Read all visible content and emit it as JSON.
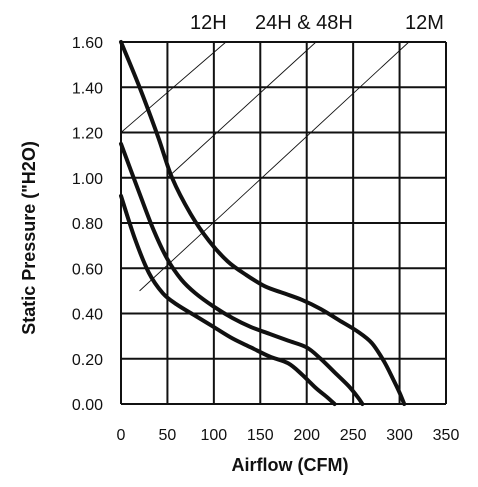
{
  "chart_data": {
    "type": "line",
    "title": "",
    "xlabel": "Airflow (CFM)",
    "ylabel": "Static Pressure (\"H2O)",
    "xlim": [
      0,
      350
    ],
    "ylim": [
      0,
      1.6
    ],
    "x_ticks": [
      "0",
      "50",
      "100",
      "150",
      "200",
      "250",
      "300",
      "350"
    ],
    "y_ticks": [
      "0.00",
      "0.20",
      "0.40",
      "0.60",
      "0.80",
      "1.00",
      "1.20",
      "1.40",
      "1.60"
    ],
    "x_tick_values": [
      0,
      50,
      100,
      150,
      200,
      250,
      300,
      350
    ],
    "y_tick_values": [
      0,
      0.2,
      0.4,
      0.6,
      0.8,
      1.0,
      1.2,
      1.4,
      1.6
    ],
    "grid": true,
    "colors": {
      "ink": "#111111",
      "background": "#ffffff"
    },
    "annotations": [
      "12H",
      "24H & 48H",
      "12M"
    ],
    "series": [
      {
        "values": [
          [
            0,
            1.6
          ],
          [
            20,
            1.4
          ],
          [
            40,
            1.18
          ],
          [
            55,
            1.0
          ],
          [
            75,
            0.84
          ],
          [
            95,
            0.72
          ],
          [
            115,
            0.63
          ],
          [
            135,
            0.57
          ],
          [
            155,
            0.52
          ],
          [
            175,
            0.49
          ],
          [
            195,
            0.46
          ],
          [
            215,
            0.42
          ],
          [
            235,
            0.37
          ],
          [
            255,
            0.32
          ],
          [
            270,
            0.27
          ],
          [
            283,
            0.19
          ],
          [
            293,
            0.11
          ],
          [
            300,
            0.05
          ],
          [
            305,
            0.0
          ]
        ]
      },
      {
        "values": [
          [
            0,
            1.15
          ],
          [
            20,
            0.93
          ],
          [
            35,
            0.77
          ],
          [
            50,
            0.64
          ],
          [
            65,
            0.55
          ],
          [
            80,
            0.49
          ],
          [
            100,
            0.43
          ],
          [
            120,
            0.38
          ],
          [
            140,
            0.34
          ],
          [
            160,
            0.31
          ],
          [
            180,
            0.28
          ],
          [
            200,
            0.25
          ],
          [
            215,
            0.2
          ],
          [
            230,
            0.14
          ],
          [
            245,
            0.08
          ],
          [
            255,
            0.03
          ],
          [
            260,
            0.0
          ]
        ]
      },
      {
        "values": [
          [
            0,
            0.92
          ],
          [
            15,
            0.73
          ],
          [
            30,
            0.58
          ],
          [
            45,
            0.49
          ],
          [
            60,
            0.44
          ],
          [
            80,
            0.39
          ],
          [
            100,
            0.34
          ],
          [
            120,
            0.29
          ],
          [
            140,
            0.25
          ],
          [
            160,
            0.21
          ],
          [
            180,
            0.18
          ],
          [
            195,
            0.13
          ],
          [
            210,
            0.07
          ],
          [
            222,
            0.03
          ],
          [
            230,
            0.0
          ]
        ]
      }
    ],
    "system_lines": [
      {
        "label": "12H",
        "x": [
          0,
          113
        ],
        "y": [
          1.2,
          1.6
        ]
      },
      {
        "label": "24H & 48H",
        "x": [
          50,
          210
        ],
        "y": [
          1.0,
          1.6
        ]
      },
      {
        "label": "12M",
        "x": [
          20,
          310
        ],
        "y": [
          0.5,
          1.6
        ]
      }
    ]
  }
}
